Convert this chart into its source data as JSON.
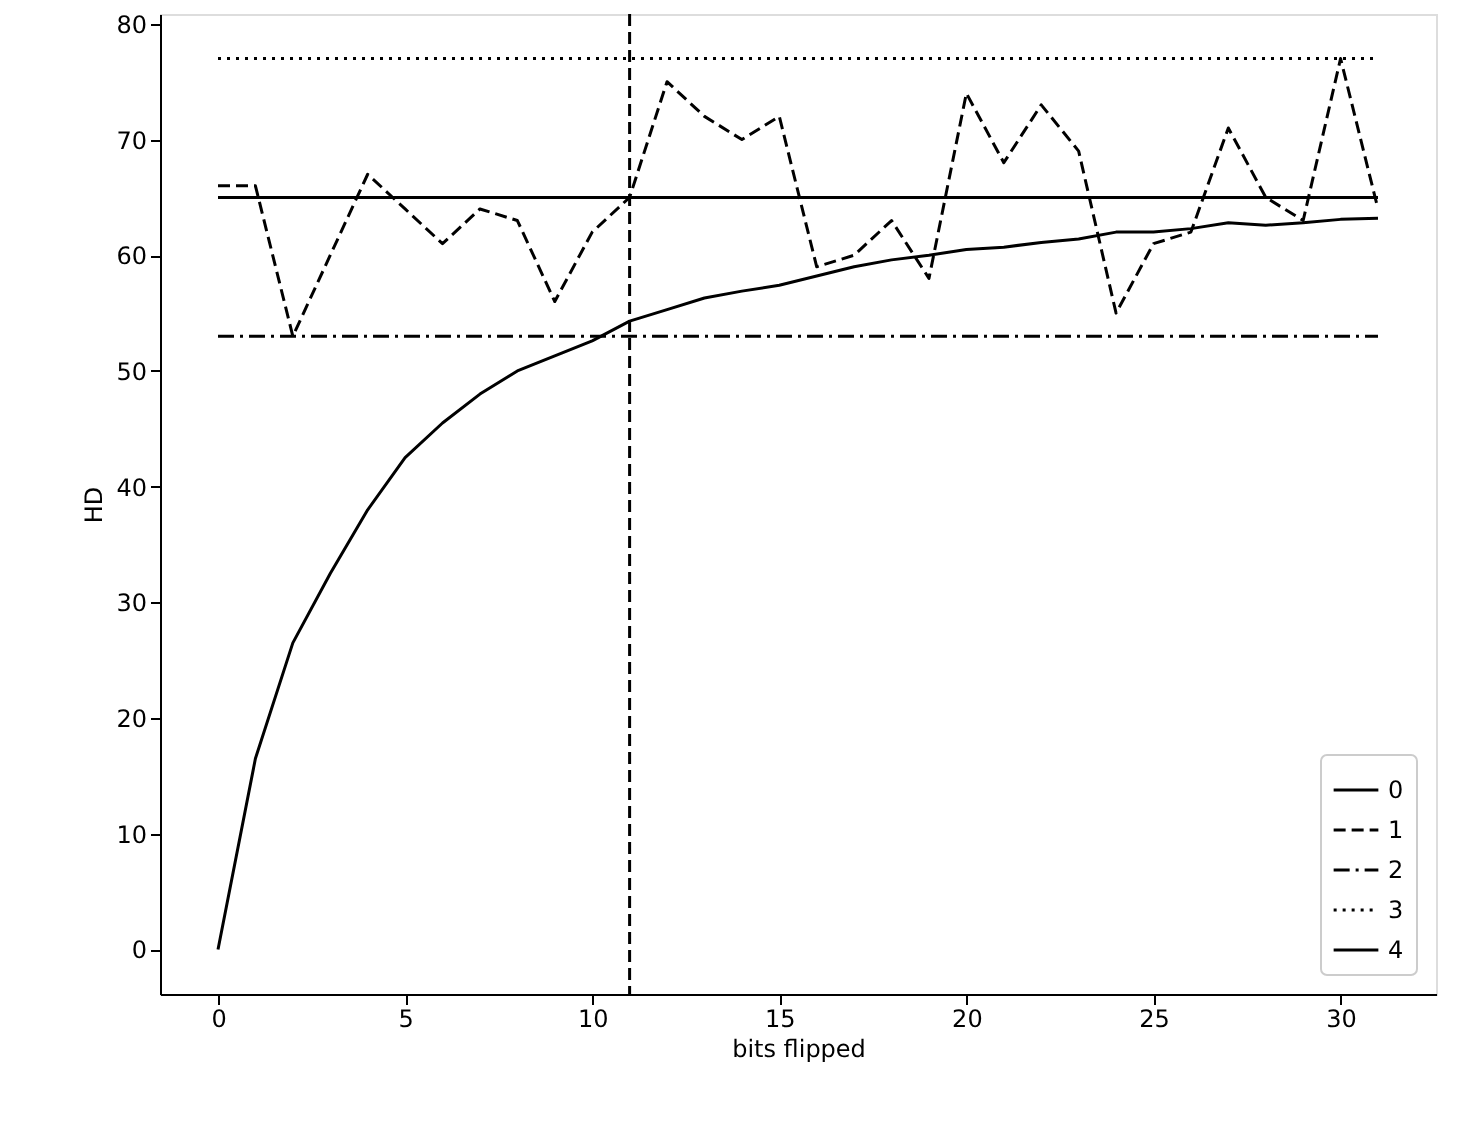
{
  "chart_data": {
    "type": "line",
    "xlabel": "bits flipped",
    "ylabel": "HD",
    "x": [
      0,
      1,
      2,
      3,
      4,
      5,
      6,
      7,
      8,
      9,
      10,
      11,
      12,
      13,
      14,
      15,
      16,
      17,
      18,
      19,
      20,
      21,
      22,
      23,
      24,
      25,
      26,
      27,
      28,
      29,
      30,
      31
    ],
    "series": [
      {
        "name": "0",
        "color": "#000000",
        "line_style": "solid",
        "values": [
          0,
          16.5,
          26.5,
          32.5,
          38,
          42.5,
          45.5,
          48,
          50,
          51.3,
          52.6,
          54.3,
          55.3,
          56.3,
          56.9,
          57.4,
          58.2,
          59,
          59.6,
          60,
          60.5,
          60.7,
          61.1,
          61.4,
          62,
          62,
          62.3,
          62.8,
          62.6,
          62.8,
          63.1,
          63.2
        ]
      },
      {
        "name": "1",
        "color": "#000000",
        "line_style": "dashed",
        "values": [
          66,
          66,
          53,
          60,
          67,
          64,
          61,
          64,
          63,
          56,
          62,
          65,
          75,
          72,
          70,
          72,
          59,
          60,
          63,
          58,
          74,
          68,
          73,
          69,
          55,
          61,
          62,
          71,
          65,
          63,
          77,
          64
        ]
      },
      {
        "name": "2",
        "color": "#000000",
        "line_style": "dashdot",
        "values": [
          53,
          53,
          53,
          53,
          53,
          53,
          53,
          53,
          53,
          53,
          53,
          53,
          53,
          53,
          53,
          53,
          53,
          53,
          53,
          53,
          53,
          53,
          53,
          53,
          53,
          53,
          53,
          53,
          53,
          53,
          53,
          53
        ]
      },
      {
        "name": "3",
        "color": "#000000",
        "line_style": "dotted",
        "values": [
          77,
          77,
          77,
          77,
          77,
          77,
          77,
          77,
          77,
          77,
          77,
          77,
          77,
          77,
          77,
          77,
          77,
          77,
          77,
          77,
          77,
          77,
          77,
          77,
          77,
          77,
          77,
          77,
          77,
          77,
          77,
          77
        ]
      },
      {
        "name": "4",
        "color": "#000000",
        "line_style": "solid",
        "values": [
          65,
          65,
          65,
          65,
          65,
          65,
          65,
          65,
          65,
          65,
          65,
          65,
          65,
          65,
          65,
          65,
          65,
          65,
          65,
          65,
          65,
          65,
          65,
          65,
          65,
          65,
          65,
          65,
          65,
          65,
          65,
          65
        ]
      }
    ],
    "ref_lines": [
      {
        "axis": "x",
        "value": 11,
        "color": "#000000",
        "line_style": "dashed"
      }
    ],
    "xlim": [
      -1.55,
      32.55
    ],
    "ylim": [
      -3.85,
      80.85
    ],
    "xticks": [
      0,
      5,
      10,
      15,
      20,
      25,
      30
    ],
    "yticks": [
      0,
      10,
      20,
      30,
      40,
      50,
      60,
      70,
      80
    ],
    "grid": false,
    "legend": "bottom right"
  }
}
